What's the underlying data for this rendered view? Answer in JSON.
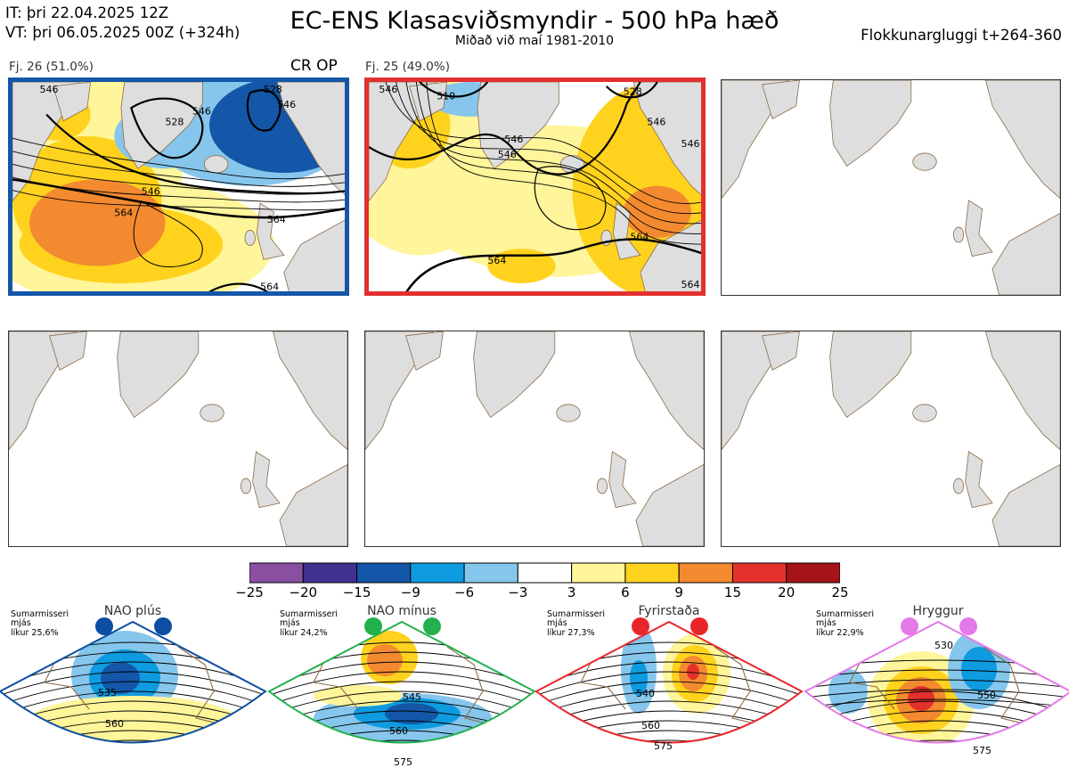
{
  "header": {
    "it_line": "IT: þri 22.04.2025 12Z",
    "vt_line": "VT: þri 06.05.2025 00Z  (+324h)",
    "title": "EC-ENS Klasasviðsmyndir - 500 hPa hæð",
    "subtitle": "Miðað við maí 1981-2010",
    "window": "Flokkunargluggi t+264-360"
  },
  "clusters": [
    {
      "label": "Fj. 26 (51.0%)",
      "tag": "CR OP",
      "border_color": "#1456a8",
      "contours": [
        "546",
        "546",
        "546",
        "528",
        "528",
        "564",
        "564",
        "564",
        "546"
      ]
    },
    {
      "label": "Fj. 25 (49.0%)",
      "tag": "",
      "border_color": "#e23030",
      "contours": [
        "546",
        "510",
        "528",
        "546",
        "546",
        "546",
        "546",
        "564",
        "564",
        "564"
      ]
    }
  ],
  "colors": {
    "land": "#dedede",
    "coast": "#8b6b47"
  },
  "chart_data": {
    "type": "heatmap",
    "title": "EC-ENS Klasasviðsmyndir - 500 hPa hæð",
    "colorbar": {
      "ticks": [
        "−25",
        "−20",
        "−15",
        "−9",
        "−6",
        "−3",
        "3",
        "6",
        "9",
        "15",
        "20",
        "25"
      ],
      "colors": [
        "#8a4fa0",
        "#41308e",
        "#1456a8",
        "#0e9bdf",
        "#86c6ec",
        "#ffffff",
        "#fff59a",
        "#ffd21e",
        "#f38a30",
        "#e3322b",
        "#a51418"
      ]
    },
    "regimes": [
      {
        "name": "NAO plús",
        "season": "Sumarmisseri",
        "height": "mjás",
        "prob": "líkur 25,6%",
        "color": "#0b4ea2",
        "contours": [
          "535",
          "560"
        ]
      },
      {
        "name": "NAO mínus",
        "season": "Sumarmisseri",
        "height": "mjás",
        "prob": "líkur 24,2%",
        "color": "#22b14c",
        "contours": [
          "545",
          "560",
          "575"
        ]
      },
      {
        "name": "Fyrirstaða",
        "season": "Sumarmisseri",
        "height": "mjás",
        "prob": "líkur 27,3%",
        "color": "#e8262a",
        "contours": [
          "540",
          "560",
          "575"
        ]
      },
      {
        "name": "Hryggur",
        "season": "Sumarmisseri",
        "height": "mjás",
        "prob": "líkur 22,9%",
        "color": "#e479e8",
        "contours": [
          "530",
          "550",
          "575"
        ]
      }
    ]
  }
}
